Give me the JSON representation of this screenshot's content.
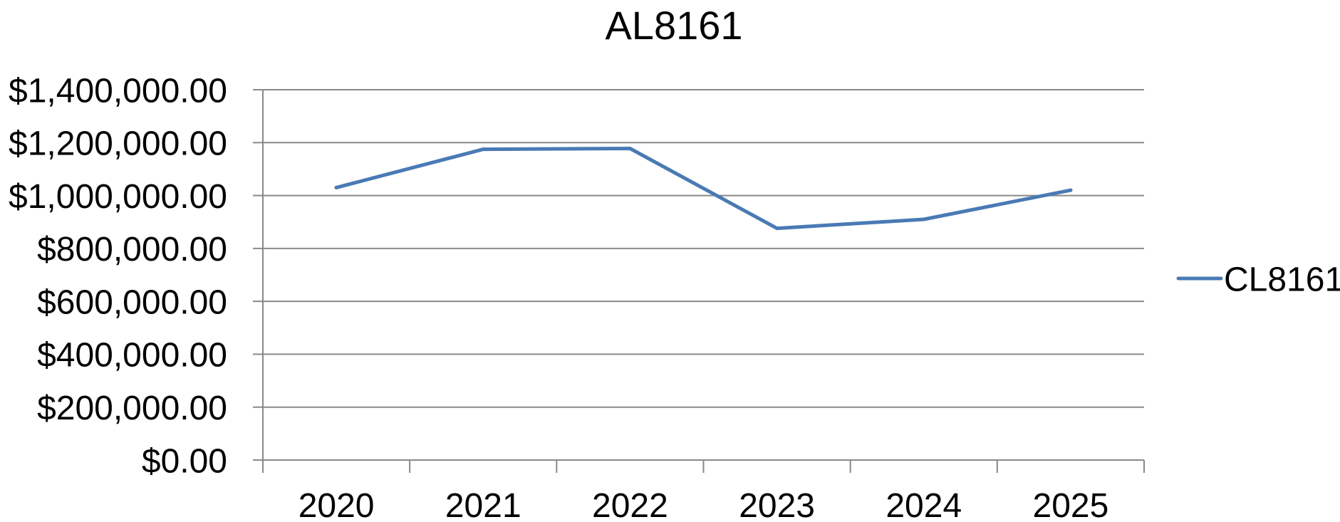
{
  "chart_data": {
    "type": "line",
    "title": "AL8161",
    "xlabel": "",
    "ylabel": "",
    "categories": [
      "2020",
      "2021",
      "2022",
      "2023",
      "2024",
      "2025"
    ],
    "series": [
      {
        "name": "CL8161",
        "values": [
          1030000,
          1175000,
          1178000,
          876000,
          910000,
          1020000
        ],
        "color": "#4a7ab5"
      }
    ],
    "ylim": [
      0,
      1400000
    ],
    "yticks": [
      0,
      200000,
      400000,
      600000,
      800000,
      1000000,
      1200000,
      1400000
    ],
    "ytick_labels": [
      "$0.00",
      "$200,000.00",
      "$400,000.00",
      "$600,000.00",
      "$800,000.00",
      "$1,000,000.00",
      "$1,200,000.00",
      "$1,400,000.00"
    ],
    "grid": true,
    "legend": "right",
    "gridline_color": "#898989",
    "axis_color": "#898989"
  }
}
